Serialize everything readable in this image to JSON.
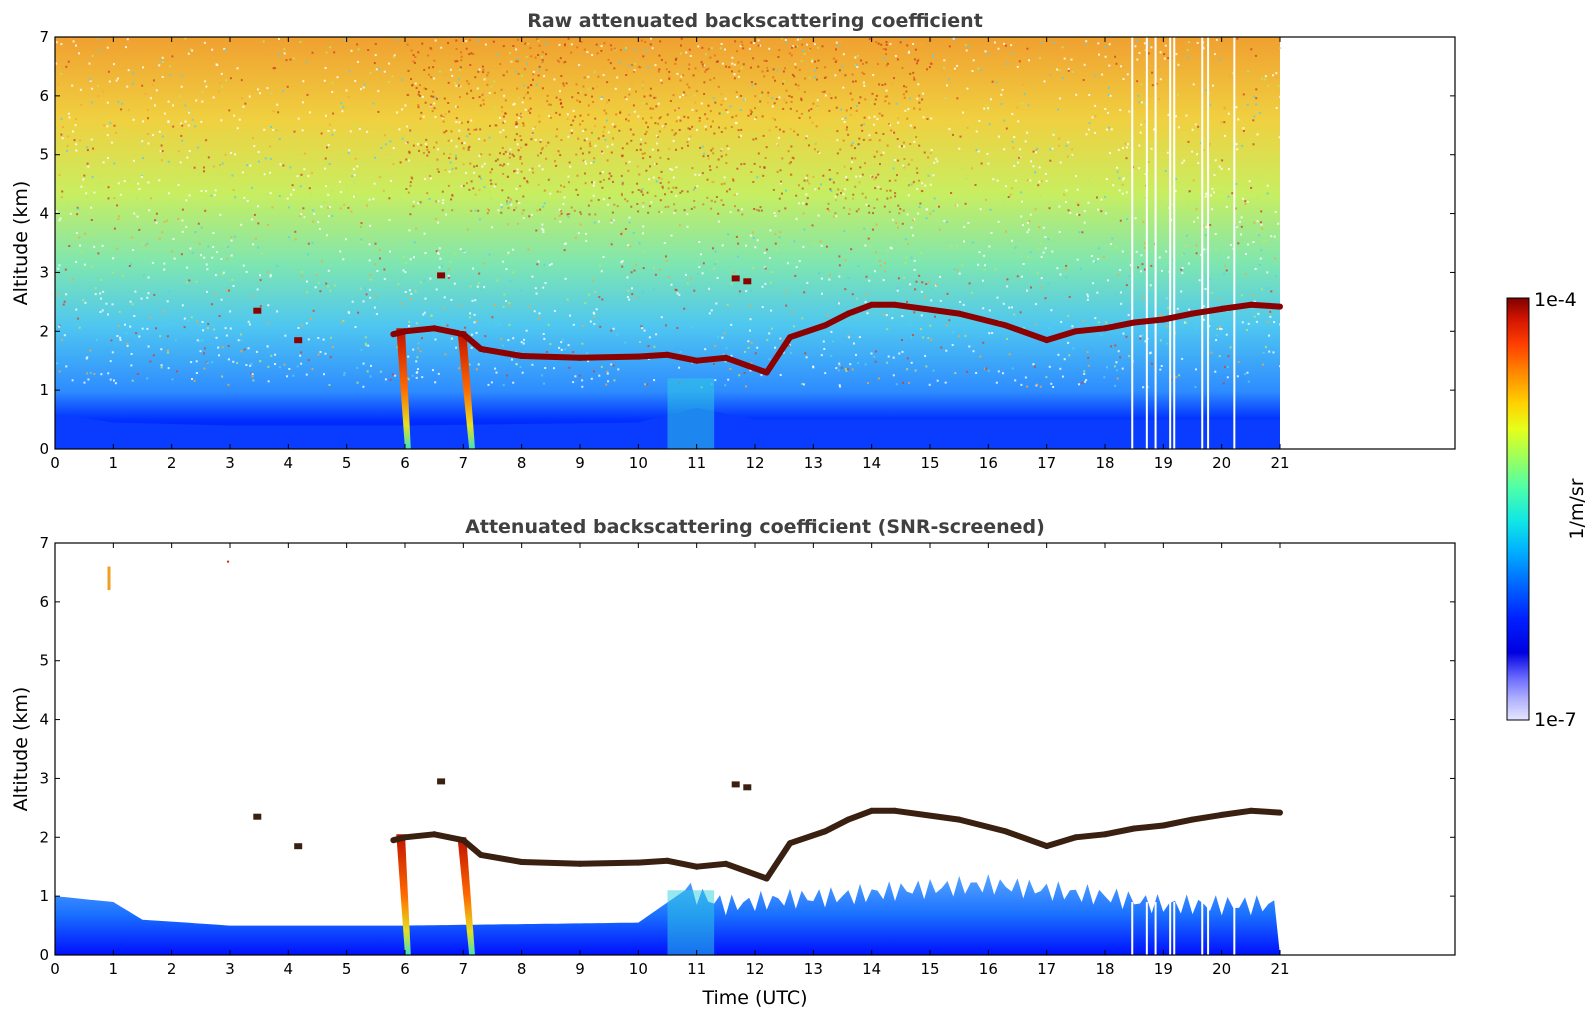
{
  "chart_data": [
    {
      "type": "heatmap",
      "title": "Raw attenuated backscattering coefficient",
      "xlabel": "",
      "ylabel": "Altitude (km)",
      "xlim": [
        0,
        24
      ],
      "ylim": [
        0,
        7
      ],
      "x_ticks": [
        0,
        1,
        2,
        3,
        4,
        5,
        6,
        7,
        8,
        9,
        10,
        11,
        12,
        13,
        14,
        15,
        16,
        17,
        18,
        19,
        20,
        21
      ],
      "y_ticks": [
        0,
        1,
        2,
        3,
        4,
        5,
        6,
        7
      ],
      "data_end_time": 21,
      "grid": false,
      "screened": false,
      "cloud_layer": [
        [
          5.8,
          1.95
        ],
        [
          6.0,
          2.0
        ],
        [
          6.5,
          2.05
        ],
        [
          7.0,
          1.95
        ],
        [
          7.3,
          1.7
        ],
        [
          8.0,
          1.58
        ],
        [
          9.0,
          1.55
        ],
        [
          10.0,
          1.57
        ],
        [
          10.5,
          1.6
        ],
        [
          11.0,
          1.5
        ],
        [
          11.5,
          1.55
        ],
        [
          12.2,
          1.3
        ],
        [
          12.6,
          1.9
        ],
        [
          13.2,
          2.1
        ],
        [
          13.6,
          2.3
        ],
        [
          14.0,
          2.45
        ],
        [
          14.4,
          2.45
        ],
        [
          15.5,
          2.3
        ],
        [
          16.3,
          2.1
        ],
        [
          17.0,
          1.85
        ],
        [
          17.5,
          2.0
        ],
        [
          18.0,
          2.05
        ],
        [
          18.5,
          2.15
        ],
        [
          19.0,
          2.2
        ],
        [
          19.5,
          2.3
        ],
        [
          20.0,
          2.38
        ],
        [
          20.5,
          2.45
        ],
        [
          21.0,
          2.42
        ]
      ],
      "precipitation_streaks": [
        [
          5.95,
          6.1,
          2.05
        ],
        [
          7.0,
          7.2,
          2.0
        ]
      ],
      "aerosol_layer": [
        [
          0,
          0.6
        ],
        [
          1,
          0.45
        ],
        [
          3,
          0.4
        ],
        [
          6,
          0.4
        ],
        [
          10,
          0.45
        ],
        [
          11,
          0.7
        ],
        [
          12,
          0.5
        ],
        [
          14,
          0.5
        ],
        [
          18,
          0.5
        ],
        [
          21,
          0.5
        ]
      ]
    },
    {
      "type": "heatmap",
      "title": "Attenuated backscattering coefficient (SNR-screened)",
      "xlabel": "Time (UTC)",
      "ylabel": "Altitude (km)",
      "xlim": [
        0,
        24
      ],
      "ylim": [
        0,
        7
      ],
      "x_ticks": [
        0,
        1,
        2,
        3,
        4,
        5,
        6,
        7,
        8,
        9,
        10,
        11,
        12,
        13,
        14,
        15,
        16,
        17,
        18,
        19,
        20,
        21
      ],
      "y_ticks": [
        0,
        1,
        2,
        3,
        4,
        5,
        6,
        7
      ],
      "data_end_time": 21,
      "grid": false,
      "screened": true,
      "cloud_layer": [
        [
          5.8,
          1.95
        ],
        [
          6.0,
          2.0
        ],
        [
          6.5,
          2.05
        ],
        [
          7.0,
          1.95
        ],
        [
          7.3,
          1.7
        ],
        [
          8.0,
          1.58
        ],
        [
          9.0,
          1.55
        ],
        [
          10.0,
          1.57
        ],
        [
          10.5,
          1.6
        ],
        [
          11.0,
          1.5
        ],
        [
          11.5,
          1.55
        ],
        [
          12.2,
          1.3
        ],
        [
          12.6,
          1.9
        ],
        [
          13.2,
          2.1
        ],
        [
          13.6,
          2.3
        ],
        [
          14.0,
          2.45
        ],
        [
          14.4,
          2.45
        ],
        [
          15.5,
          2.3
        ],
        [
          16.3,
          2.1
        ],
        [
          17.0,
          1.85
        ],
        [
          17.5,
          2.0
        ],
        [
          18.0,
          2.05
        ],
        [
          18.5,
          2.15
        ],
        [
          19.0,
          2.2
        ],
        [
          19.5,
          2.3
        ],
        [
          20.0,
          2.38
        ],
        [
          20.5,
          2.45
        ],
        [
          21.0,
          2.42
        ]
      ],
      "boundary_layer_top": [
        [
          0,
          1.0
        ],
        [
          1,
          0.9
        ],
        [
          1.5,
          0.6
        ],
        [
          3,
          0.5
        ],
        [
          6,
          0.5
        ],
        [
          10,
          0.55
        ],
        [
          10.8,
          1.1
        ],
        [
          11.5,
          0.85
        ],
        [
          12.5,
          0.95
        ],
        [
          13.5,
          1.0
        ],
        [
          14.5,
          1.1
        ],
        [
          16,
          1.2
        ],
        [
          17,
          1.1
        ],
        [
          18,
          1.0
        ],
        [
          19,
          0.85
        ],
        [
          21,
          0.85
        ]
      ]
    }
  ],
  "colorbar": {
    "min_label": "1e-7",
    "max_label": "1e-4",
    "unit_label": "1/m/sr",
    "colormap": [
      "#7f0000",
      "#d21400",
      "#ff3f00",
      "#ff8c00",
      "#ffd200",
      "#e6ff1a",
      "#9bff5e",
      "#4dffaa",
      "#10e6e6",
      "#00b0ff",
      "#0066ff",
      "#0020ff",
      "#0000e0",
      "#6a6aff",
      "#b0b0ff",
      "#e6e6ff"
    ]
  }
}
